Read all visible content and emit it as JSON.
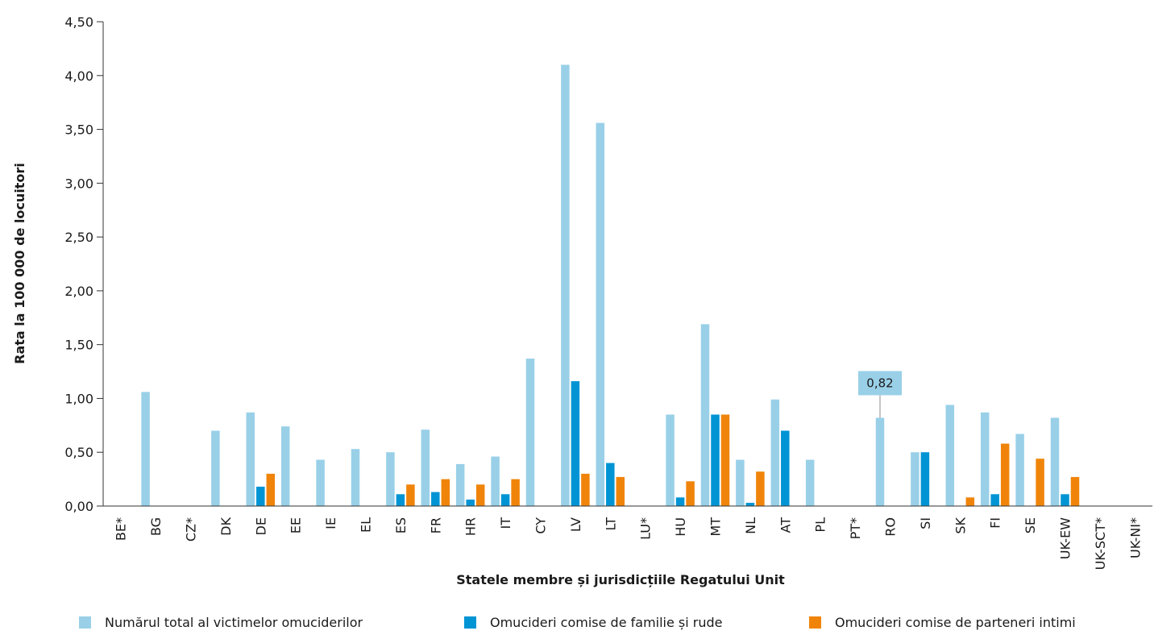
{
  "chart_data": {
    "type": "bar",
    "xlabel": "Statele membre și jurisdicțiile Regatului Unit",
    "ylabel": "Rata la 100 000 de locuitori",
    "ylim": [
      0,
      4.5
    ],
    "yticks": [
      "0,00",
      "0,50",
      "1,00",
      "1,50",
      "2,00",
      "2,50",
      "3,00",
      "3,50",
      "4,00",
      "4,50"
    ],
    "grid": false,
    "legend_position": "bottom",
    "categories": [
      "BE*",
      "BG",
      "CZ*",
      "DK",
      "DE",
      "EE",
      "IE",
      "EL",
      "ES",
      "FR",
      "HR",
      "IT",
      "CY",
      "LV",
      "LT",
      "LU*",
      "HU",
      "MT",
      "NL",
      "AT",
      "PL",
      "PT*",
      "RO",
      "SI",
      "SK",
      "FI",
      "SE",
      "UK-EW",
      "UK-SCT*",
      "UK-NI*"
    ],
    "series": [
      {
        "name": "Numărul total al victimelor omuciderilor",
        "color": "#99d0e8",
        "values": [
          null,
          1.06,
          null,
          0.7,
          0.87,
          0.74,
          0.43,
          0.53,
          0.5,
          0.71,
          0.39,
          0.46,
          1.37,
          4.1,
          3.56,
          null,
          0.85,
          1.69,
          0.43,
          0.99,
          0.43,
          null,
          0.82,
          0.5,
          0.94,
          0.87,
          0.67,
          0.82,
          null,
          null
        ]
      },
      {
        "name": "Omucideri comise de familie și rude",
        "color": "#0094d4",
        "values": [
          null,
          null,
          null,
          null,
          0.18,
          null,
          null,
          null,
          0.11,
          0.13,
          0.06,
          0.11,
          null,
          1.16,
          0.4,
          null,
          0.08,
          0.85,
          0.03,
          0.7,
          null,
          null,
          null,
          0.5,
          null,
          0.11,
          null,
          0.11,
          null,
          null
        ]
      },
      {
        "name": "Omucideri comise de parteneri intimi",
        "color": "#f0840a",
        "values": [
          null,
          null,
          null,
          null,
          0.3,
          null,
          null,
          null,
          0.2,
          0.25,
          0.2,
          0.25,
          null,
          0.3,
          0.27,
          null,
          0.23,
          0.85,
          0.32,
          null,
          null,
          null,
          null,
          null,
          0.08,
          0.58,
          0.44,
          0.27,
          null,
          null
        ]
      }
    ],
    "annotations": [
      {
        "category": "RO",
        "series": 0,
        "text": "0,82"
      }
    ]
  }
}
